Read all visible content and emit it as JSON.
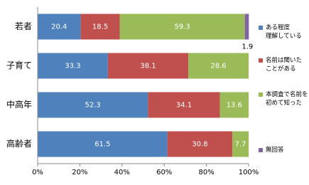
{
  "chart_data": {
    "type": "stacked-barh",
    "categories": [
      "若者",
      "子育て",
      "中高年",
      "高齢者"
    ],
    "series": [
      {
        "name": "ある程度\n理解している",
        "color": "#4f81bd",
        "values": [
          20.4,
          33.3,
          52.3,
          61.5
        ]
      },
      {
        "name": "名前は聞いた\nことがある",
        "color": "#c0504d",
        "values": [
          18.5,
          38.1,
          34.1,
          30.8
        ]
      },
      {
        "name": "本調査で名前を\n初めて知った",
        "color": "#9bbb59",
        "values": [
          59.3,
          28.6,
          13.6,
          7.7
        ]
      },
      {
        "name": "無回答",
        "color": "#8064a2",
        "values": [
          1.9,
          null,
          null,
          null
        ]
      }
    ],
    "xlim": [
      0,
      100
    ],
    "xticks": [
      {
        "value": 0,
        "label": "0%"
      },
      {
        "value": 20,
        "label": "20%"
      },
      {
        "value": 40,
        "label": "40%"
      },
      {
        "value": 60,
        "label": "60%"
      },
      {
        "value": 80,
        "label": "80%"
      },
      {
        "value": 100,
        "label": "100%"
      }
    ],
    "legend": "right"
  }
}
